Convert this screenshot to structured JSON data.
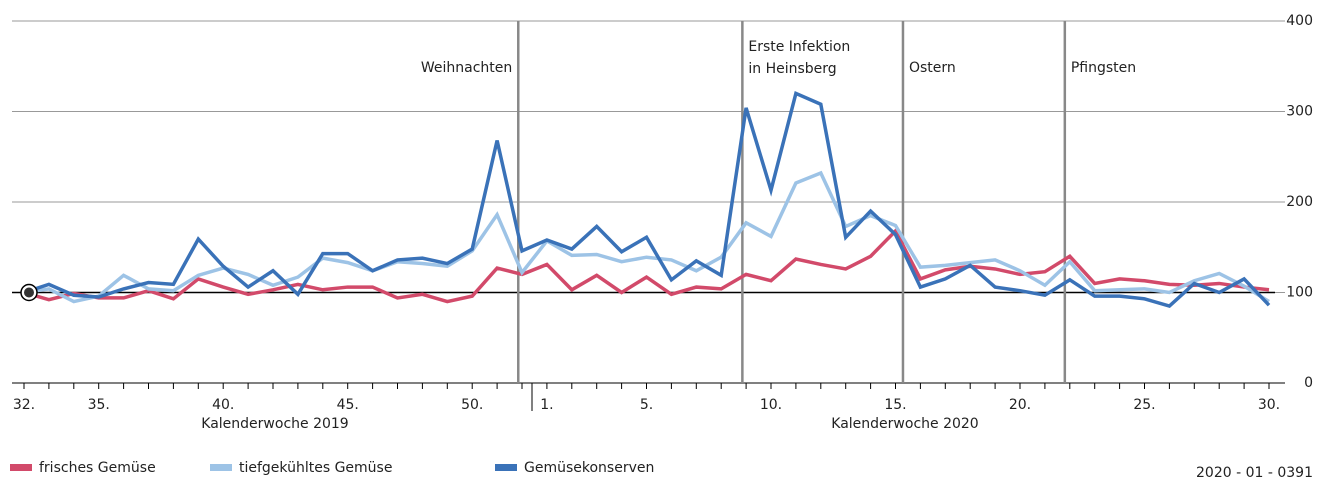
{
  "chart_data": {
    "type": "line",
    "categories": [
      "32.",
      null,
      null,
      "35.",
      null,
      null,
      null,
      null,
      "40.",
      null,
      null,
      null,
      null,
      "45.",
      null,
      null,
      null,
      null,
      "50.",
      null,
      null,
      "1.",
      null,
      null,
      null,
      "5.",
      null,
      null,
      null,
      null,
      "10.",
      null,
      null,
      null,
      null,
      "15.",
      null,
      null,
      null,
      null,
      "20.",
      null,
      null,
      null,
      null,
      "25.",
      null,
      null,
      null,
      null,
      "30."
    ],
    "x_labels": [
      "Kalenderwoche 2019",
      "Kalenderwoche 2020"
    ],
    "series": [
      {
        "name": "frisches Gemüse",
        "color": "#d24a6a",
        "values": [
          100,
          92,
          99,
          94,
          94,
          102,
          93,
          115,
          106,
          98,
          103,
          109,
          103,
          106,
          106,
          94,
          98,
          90,
          96,
          127,
          120,
          131,
          103,
          119,
          100,
          117,
          98,
          106,
          104,
          120,
          113,
          137,
          131,
          126,
          140,
          168,
          115,
          125,
          129,
          126,
          120,
          123,
          140,
          110,
          115,
          113,
          109,
          108,
          110,
          106,
          103
        ]
      },
      {
        "name": "tiefgekühltes Gemüse",
        "color": "#9dc3e6",
        "values": [
          100,
          104,
          90,
          96,
          119,
          104,
          102,
          119,
          127,
          120,
          108,
          117,
          138,
          133,
          124,
          134,
          132,
          129,
          146,
          186,
          122,
          157,
          141,
          142,
          134,
          139,
          136,
          124,
          139,
          177,
          162,
          221,
          232,
          173,
          185,
          174,
          128,
          130,
          133,
          136,
          124,
          108,
          134,
          102,
          103,
          104,
          100,
          113,
          121,
          107,
          90
        ]
      },
      {
        "name": "Gemüsekonserven",
        "color": "#3a72b8",
        "values": [
          100,
          109,
          97,
          95,
          104,
          111,
          109,
          159,
          129,
          106,
          124,
          98,
          143,
          143,
          124,
          136,
          138,
          132,
          148,
          268,
          146,
          158,
          148,
          173,
          145,
          161,
          114,
          135,
          119,
          304,
          213,
          320,
          308,
          161,
          190,
          164,
          106,
          115,
          130,
          106,
          102,
          97,
          114,
          96,
          96,
          93,
          85,
          110,
          100,
          115,
          86
        ]
      }
    ],
    "ylim": [
      0,
      400
    ],
    "yticks": [
      0,
      100,
      200,
      300,
      400
    ],
    "grid": true,
    "reference_value": 100,
    "annotations": [
      {
        "lines": [
          "Weihnachten"
        ]
      },
      {
        "lines": [
          "Erste Infektion",
          "in Heinsberg"
        ]
      },
      {
        "lines": [
          "Ostern"
        ]
      },
      {
        "lines": [
          "Pfingsten"
        ]
      }
    ],
    "source_id": "2020 - 01 - 0391"
  }
}
